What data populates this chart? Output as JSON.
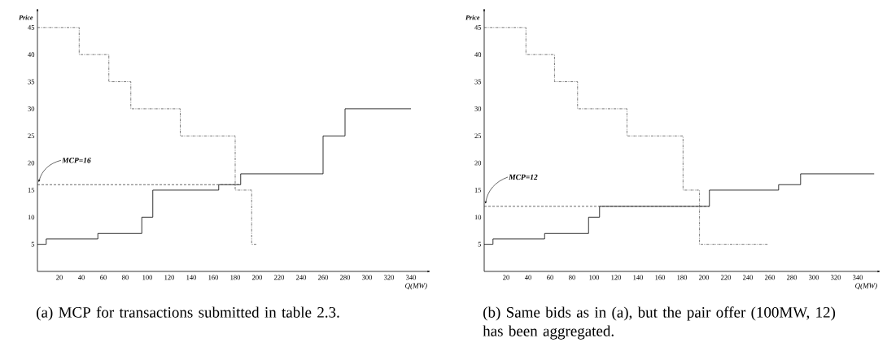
{
  "chart_data": [
    {
      "type": "step",
      "xlabel": "Q(MW)",
      "ylabel": "Price",
      "xlim": [
        0,
        355
      ],
      "ylim": [
        0,
        48
      ],
      "xticks": [
        20,
        40,
        60,
        80,
        100,
        120,
        140,
        160,
        180,
        200,
        220,
        240,
        260,
        280,
        300,
        320,
        340
      ],
      "yticks": [
        5,
        10,
        15,
        20,
        25,
        30,
        35,
        40,
        45
      ],
      "series": [
        {
          "type": "step",
          "color": "#000000",
          "line_style": "solid",
          "x": [
            0,
            8,
            55,
            95,
            105,
            165,
            185,
            260,
            280,
            340
          ],
          "values": [
            5,
            6,
            7,
            10,
            15,
            16,
            18,
            25,
            30,
            30
          ]
        },
        {
          "type": "step",
          "color": "#555555",
          "line_style": "dashdot",
          "x": [
            0,
            38,
            65,
            85,
            130,
            180,
            195,
            200
          ],
          "values": [
            45,
            40,
            35,
            30,
            25,
            15,
            5,
            5
          ]
        },
        {
          "type": "line",
          "color": "#444444",
          "line_style": "dashed",
          "x": [
            0,
            185
          ],
          "values": [
            16,
            16
          ]
        }
      ],
      "annotations": [
        {
          "text": "MCP=16",
          "x": 0,
          "y": 16
        },
        "(a) MCP for transactions submitted in table 2.3."
      ]
    },
    {
      "type": "step",
      "xlabel": "Q(MW)",
      "ylabel": "Price",
      "xlim": [
        0,
        358
      ],
      "ylim": [
        0,
        48
      ],
      "xticks": [
        20,
        40,
        60,
        80,
        100,
        120,
        140,
        160,
        180,
        200,
        220,
        240,
        260,
        280,
        300,
        320,
        340
      ],
      "yticks": [
        5,
        10,
        15,
        20,
        25,
        30,
        35,
        40,
        45
      ],
      "series": [
        {
          "type": "step",
          "color": "#000000",
          "line_style": "solid",
          "x": [
            0,
            8,
            55,
            95,
            105,
            205,
            268,
            288,
            355
          ],
          "values": [
            5,
            6,
            7,
            10,
            12,
            15,
            16,
            18,
            18
          ]
        },
        {
          "type": "step",
          "color": "#555555",
          "line_style": "dashdot",
          "x": [
            0,
            38,
            64,
            85,
            130,
            181,
            196,
            258
          ],
          "values": [
            45,
            40,
            35,
            30,
            25,
            15,
            5,
            5
          ]
        },
        {
          "type": "line",
          "color": "#444444",
          "line_style": "dashed",
          "x": [
            0,
            205
          ],
          "values": [
            12,
            12
          ]
        }
      ],
      "annotations": [
        {
          "text": "MCP=12",
          "x": 0,
          "y": 12
        },
        "(b) Same bids as in (a), but the pair offer (100MW, 12) has been aggregated."
      ]
    }
  ]
}
